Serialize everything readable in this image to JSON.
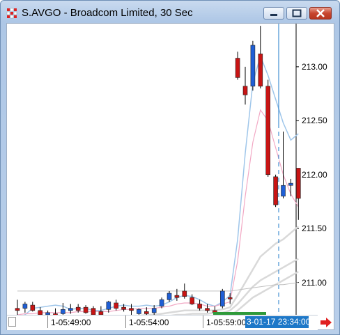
{
  "window": {
    "title": "S.AVGO - Broadcom Limited, 30 Sec",
    "app_icon": "grid-app-icon",
    "controls": [
      "minimize-icon",
      "maximize-icon",
      "close-icon"
    ]
  },
  "chart_data": {
    "type": "candlestick",
    "symbol": "S.AVGO",
    "ylim": [
      210.7,
      213.4
    ],
    "price_labels": [
      "213.00",
      "212.50",
      "212.00",
      "211.50",
      "211.00"
    ],
    "time_labels": [
      "1-05:49:00",
      "1-05:54:00",
      "1-05:59:00"
    ],
    "current_time_label": "3-01-17 23:34:00",
    "colors": {
      "up": "#1f5fd6",
      "down": "#c81414",
      "ma1": "#9fc6ea",
      "ma2": "#f2a8c4",
      "ma3": "#d9d9d9",
      "ma4": "#c0c0c0"
    },
    "candles": [
      {
        "o": 210.76,
        "h": 210.84,
        "l": 210.7,
        "c": 210.74
      },
      {
        "o": 210.76,
        "h": 210.82,
        "l": 210.72,
        "c": 210.8
      },
      {
        "o": 210.79,
        "h": 210.82,
        "l": 210.73,
        "c": 210.74
      },
      {
        "o": 210.74,
        "h": 210.77,
        "l": 210.69,
        "c": 210.7
      },
      {
        "o": 210.7,
        "h": 210.74,
        "l": 210.67,
        "c": 210.72
      },
      {
        "o": 210.71,
        "h": 210.76,
        "l": 210.68,
        "c": 210.69
      },
      {
        "o": 210.71,
        "h": 210.81,
        "l": 210.69,
        "c": 210.75
      },
      {
        "o": 210.74,
        "h": 210.8,
        "l": 210.71,
        "c": 210.76
      },
      {
        "o": 210.77,
        "h": 210.8,
        "l": 210.72,
        "c": 210.74
      },
      {
        "o": 210.77,
        "h": 210.79,
        "l": 210.71,
        "c": 210.72
      },
      {
        "o": 210.76,
        "h": 210.78,
        "l": 210.69,
        "c": 210.7
      },
      {
        "o": 210.73,
        "h": 210.78,
        "l": 210.68,
        "c": 210.7
      },
      {
        "o": 210.75,
        "h": 210.83,
        "l": 210.72,
        "c": 210.82
      },
      {
        "o": 210.81,
        "h": 210.84,
        "l": 210.74,
        "c": 210.76
      },
      {
        "o": 210.77,
        "h": 210.8,
        "l": 210.73,
        "c": 210.75
      },
      {
        "o": 210.76,
        "h": 210.8,
        "l": 210.69,
        "c": 210.74
      },
      {
        "o": 210.71,
        "h": 210.76,
        "l": 210.67,
        "c": 210.75
      },
      {
        "o": 210.73,
        "h": 210.77,
        "l": 210.67,
        "c": 210.71
      },
      {
        "o": 210.72,
        "h": 210.79,
        "l": 210.68,
        "c": 210.76
      },
      {
        "o": 210.78,
        "h": 210.86,
        "l": 210.76,
        "c": 210.84
      },
      {
        "o": 210.84,
        "h": 210.92,
        "l": 210.82,
        "c": 210.9
      },
      {
        "o": 210.88,
        "h": 210.94,
        "l": 210.83,
        "c": 210.86
      },
      {
        "o": 210.92,
        "h": 210.99,
        "l": 210.85,
        "c": 210.87
      },
      {
        "o": 210.86,
        "h": 210.89,
        "l": 210.79,
        "c": 210.8
      },
      {
        "o": 210.8,
        "h": 210.84,
        "l": 210.74,
        "c": 210.76
      },
      {
        "o": 210.76,
        "h": 210.8,
        "l": 210.72,
        "c": 210.74
      },
      {
        "o": 210.74,
        "h": 210.78,
        "l": 210.7,
        "c": 210.72
      },
      {
        "o": 210.78,
        "h": 210.94,
        "l": 210.76,
        "c": 210.92
      },
      {
        "o": 210.86,
        "h": 210.9,
        "l": 210.8,
        "c": 210.85
      },
      {
        "o": 213.08,
        "h": 213.14,
        "l": 212.88,
        "c": 212.9
      },
      {
        "o": 212.82,
        "h": 213.0,
        "l": 212.65,
        "c": 212.74
      },
      {
        "o": 212.82,
        "h": 213.24,
        "l": 212.78,
        "c": 213.2
      },
      {
        "o": 213.12,
        "h": 213.38,
        "l": 212.8,
        "c": 212.82
      },
      {
        "o": 212.82,
        "h": 212.88,
        "l": 211.98,
        "c": 212.0
      },
      {
        "o": 211.98,
        "h": 212.0,
        "l": 211.7,
        "c": 211.72
      },
      {
        "o": 211.8,
        "h": 212.4,
        "l": 211.78,
        "c": 211.9
      },
      {
        "o": 211.9,
        "h": 211.96,
        "l": 211.8,
        "c": 211.92
      },
      {
        "o": 212.06,
        "h": 212.06,
        "l": 211.58,
        "c": 211.78
      }
    ],
    "moving_averages": [
      {
        "name": "",
        "values": [
          210.67,
          210.7,
          210.76,
          210.77,
          210.78,
          210.79,
          210.78,
          210.75,
          210.76,
          210.76,
          210.74,
          210.74,
          210.76,
          210.78,
          210.79,
          210.78,
          210.78,
          210.79,
          210.78,
          210.79,
          210.82,
          210.86,
          210.88,
          210.87,
          210.84,
          210.8,
          210.78,
          210.82,
          210.88,
          211.4,
          212.2,
          212.85,
          213.1,
          212.92,
          212.7,
          212.48,
          212.32,
          212.38
        ]
      },
      {
        "name": "",
        "values": [
          210.7,
          210.71,
          210.71,
          210.72,
          210.72,
          210.72,
          210.72,
          210.72,
          210.73,
          210.73,
          210.73,
          210.73,
          210.73,
          210.74,
          210.75,
          210.75,
          210.76,
          210.76,
          210.76,
          210.77,
          210.78,
          210.8,
          210.81,
          210.81,
          210.8,
          210.78,
          210.78,
          210.8,
          210.82,
          211.2,
          211.8,
          212.3,
          212.6,
          212.5,
          212.25,
          212.0,
          211.82,
          211.7
        ]
      },
      {
        "name": "",
        "values": [
          210.56,
          210.57,
          210.58,
          210.59,
          210.6,
          210.61,
          210.62,
          210.63,
          210.64,
          210.64,
          210.65,
          210.65,
          210.66,
          210.67,
          210.68,
          210.68,
          210.69,
          210.7,
          210.7,
          210.71,
          210.72,
          210.73,
          210.74,
          210.74,
          210.74,
          210.74,
          210.74,
          210.75,
          210.77,
          210.88,
          211.0,
          211.12,
          211.24,
          211.3,
          211.36,
          211.4,
          211.46,
          211.52
        ]
      },
      {
        "name": "",
        "values": [
          210.6,
          210.61,
          210.61,
          210.62,
          210.62,
          210.63,
          210.63,
          210.64,
          210.64,
          210.64,
          210.65,
          210.65,
          210.65,
          210.66,
          210.66,
          210.67,
          210.67,
          210.68,
          210.68,
          210.68,
          210.69,
          210.7,
          210.7,
          210.71,
          210.71,
          210.71,
          210.72,
          210.72,
          210.74,
          210.8,
          210.88,
          210.96,
          211.02,
          211.06,
          211.1,
          211.14,
          211.18,
          211.22
        ]
      },
      {
        "name": "",
        "values": [
          210.58,
          210.59,
          210.59,
          210.6,
          210.6,
          210.61,
          210.61,
          210.61,
          210.62,
          210.62,
          210.62,
          210.63,
          210.63,
          210.63,
          210.64,
          210.64,
          210.64,
          210.65,
          210.65,
          210.65,
          210.66,
          210.66,
          210.67,
          210.67,
          210.67,
          210.68,
          210.68,
          210.68,
          210.69,
          210.74,
          210.8,
          210.86,
          210.9,
          210.94,
          210.98,
          211.02,
          211.06,
          211.1
        ]
      },
      {
        "name": "",
        "values": [
          210.92,
          210.92,
          210.92,
          210.92,
          210.92,
          210.92,
          210.92,
          210.92,
          210.92,
          210.92,
          210.92,
          210.92,
          210.92,
          210.92,
          210.92,
          210.92,
          210.92,
          210.92,
          210.92,
          210.92,
          210.92,
          210.92,
          210.92,
          210.92,
          210.92,
          210.92,
          210.92,
          210.92,
          210.92,
          210.93,
          210.94,
          210.95,
          210.96,
          210.97,
          210.98,
          210.98,
          210.99,
          211.0
        ]
      }
    ]
  },
  "time_axis": {
    "scroll_icon": "right-arrow-icon"
  }
}
